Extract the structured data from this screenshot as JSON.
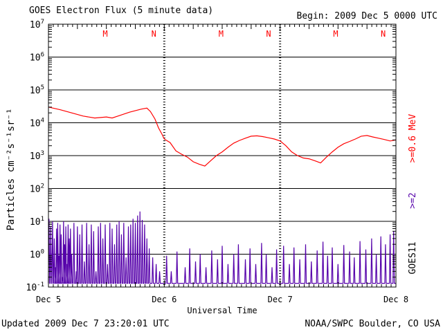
{
  "header": {
    "title": "GOES Electron Flux (5 minute data)",
    "begin": "Begin: 2009 Dec 5 0000 UTC"
  },
  "footer": {
    "updated": "Updated 2009 Dec  7 23:20:01 UTC",
    "source": "NOAA/SWPC Boulder, CO USA"
  },
  "colors": {
    "high_energy": "#ff0000",
    "low_energy": "#5500aa",
    "axis": "#000000",
    "satellite_label": "#000000",
    "mn_markers": "#ff0000"
  },
  "chart_data": {
    "type": "line",
    "title": "GOES Electron Flux (5 minute data)",
    "xlabel": "Universal Time",
    "ylabel": "Particles cm⁻²s⁻¹sr⁻¹",
    "yscale": "log",
    "ylim": [
      0.1,
      10000000
    ],
    "xlim": [
      0,
      3
    ],
    "x_unit": "days since 2009 Dec 5 0000 UTC",
    "x_ticks": [
      {
        "x": 0,
        "label": "Dec 5"
      },
      {
        "x": 1,
        "label": "Dec 6"
      },
      {
        "x": 2,
        "label": "Dec 7"
      },
      {
        "x": 3,
        "label": "Dec 8"
      }
    ],
    "y_ticks": [
      {
        "exp": -1,
        "base": "10",
        "sup": "-1"
      },
      {
        "exp": 0,
        "base": "10",
        "sup": "0"
      },
      {
        "exp": 1,
        "base": "10",
        "sup": "1"
      },
      {
        "exp": 2,
        "base": "10",
        "sup": "2"
      },
      {
        "exp": 3,
        "base": "10",
        "sup": "3"
      },
      {
        "exp": 4,
        "base": "10",
        "sup": "4"
      },
      {
        "exp": 5,
        "base": "10",
        "sup": "5"
      },
      {
        "exp": 6,
        "base": "10",
        "sup": "6"
      },
      {
        "exp": 7,
        "base": "10",
        "sup": "7"
      }
    ],
    "threshold": 1000,
    "day_boundaries": [
      1,
      2
    ],
    "mn_markers": [
      {
        "x": 0.49,
        "label": "M"
      },
      {
        "x": 0.91,
        "label": "N"
      },
      {
        "x": 1.49,
        "label": "M"
      },
      {
        "x": 1.9,
        "label": "N"
      },
      {
        "x": 2.48,
        "label": "M"
      },
      {
        "x": 2.89,
        "label": "N"
      }
    ],
    "right_labels": {
      "high": "Mev",
      "high_full": ">=0.6 MeV",
      "low": ">=2",
      "satellite": "GOES11"
    },
    "series": [
      {
        "name": ">=0.6 MeV",
        "color": "#ff0000",
        "points": [
          [
            0.0,
            30000
          ],
          [
            0.1,
            25000
          ],
          [
            0.2,
            20000
          ],
          [
            0.3,
            16000
          ],
          [
            0.4,
            14000
          ],
          [
            0.5,
            15000
          ],
          [
            0.55,
            14000
          ],
          [
            0.6,
            16000
          ],
          [
            0.7,
            21000
          ],
          [
            0.8,
            26000
          ],
          [
            0.85,
            28000
          ],
          [
            0.88,
            22000
          ],
          [
            0.92,
            13000
          ],
          [
            0.95,
            7000
          ],
          [
            0.98,
            4500
          ],
          [
            1.0,
            3200
          ],
          [
            1.05,
            2500
          ],
          [
            1.1,
            1400
          ],
          [
            1.15,
            1100
          ],
          [
            1.2,
            900
          ],
          [
            1.25,
            650
          ],
          [
            1.3,
            550
          ],
          [
            1.35,
            480
          ],
          [
            1.4,
            700
          ],
          [
            1.45,
            1000
          ],
          [
            1.5,
            1300
          ],
          [
            1.55,
            1800
          ],
          [
            1.6,
            2400
          ],
          [
            1.65,
            2900
          ],
          [
            1.7,
            3400
          ],
          [
            1.75,
            3900
          ],
          [
            1.8,
            4000
          ],
          [
            1.85,
            3800
          ],
          [
            1.9,
            3500
          ],
          [
            1.95,
            3200
          ],
          [
            2.0,
            2800
          ],
          [
            2.05,
            2000
          ],
          [
            2.1,
            1300
          ],
          [
            2.15,
            1000
          ],
          [
            2.2,
            850
          ],
          [
            2.25,
            800
          ],
          [
            2.3,
            700
          ],
          [
            2.35,
            600
          ],
          [
            2.4,
            900
          ],
          [
            2.45,
            1300
          ],
          [
            2.5,
            1800
          ],
          [
            2.55,
            2300
          ],
          [
            2.6,
            2700
          ],
          [
            2.65,
            3200
          ],
          [
            2.7,
            3900
          ],
          [
            2.75,
            4100
          ],
          [
            2.8,
            3700
          ],
          [
            2.85,
            3400
          ],
          [
            2.9,
            3100
          ],
          [
            2.95,
            2800
          ],
          [
            3.0,
            3000
          ]
        ]
      },
      {
        "name": ">=2 MeV",
        "color": "#5500aa",
        "baseline": 0.13,
        "spikes": [
          [
            0.005,
            12
          ],
          [
            0.02,
            7
          ],
          [
            0.035,
            10
          ],
          [
            0.05,
            3
          ],
          [
            0.06,
            0.4
          ],
          [
            0.07,
            6
          ],
          [
            0.08,
            9
          ],
          [
            0.09,
            0.9
          ],
          [
            0.1,
            8
          ],
          [
            0.11,
            4
          ],
          [
            0.12,
            0.2
          ],
          [
            0.13,
            10
          ],
          [
            0.14,
            2
          ],
          [
            0.15,
            7
          ],
          [
            0.16,
            0.5
          ],
          [
            0.17,
            8
          ],
          [
            0.18,
            3
          ],
          [
            0.19,
            6
          ],
          [
            0.2,
            1
          ],
          [
            0.22,
            9
          ],
          [
            0.24,
            0.3
          ],
          [
            0.25,
            7
          ],
          [
            0.27,
            4
          ],
          [
            0.29,
            8
          ],
          [
            0.31,
            0.6
          ],
          [
            0.33,
            9
          ],
          [
            0.35,
            2
          ],
          [
            0.37,
            8
          ],
          [
            0.39,
            5
          ],
          [
            0.41,
            0.3
          ],
          [
            0.43,
            7
          ],
          [
            0.45,
            9
          ],
          [
            0.47,
            3
          ],
          [
            0.49,
            8
          ],
          [
            0.51,
            0.5
          ],
          [
            0.53,
            9
          ],
          [
            0.55,
            6
          ],
          [
            0.57,
            2
          ],
          [
            0.59,
            8
          ],
          [
            0.61,
            10
          ],
          [
            0.63,
            4
          ],
          [
            0.65,
            9
          ],
          [
            0.67,
            0.8
          ],
          [
            0.69,
            7
          ],
          [
            0.71,
            8
          ],
          [
            0.73,
            12
          ],
          [
            0.75,
            9
          ],
          [
            0.77,
            15
          ],
          [
            0.79,
            20
          ],
          [
            0.81,
            11
          ],
          [
            0.83,
            8
          ],
          [
            0.85,
            3
          ],
          [
            0.87,
            1.5
          ],
          [
            0.9,
            0.8
          ],
          [
            0.93,
            0.5
          ],
          [
            0.96,
            0.3
          ],
          [
            1.02,
            0.9
          ],
          [
            1.06,
            0.3
          ],
          [
            1.11,
            1.2
          ],
          [
            1.18,
            0.4
          ],
          [
            1.22,
            1.5
          ],
          [
            1.27,
            0.6
          ],
          [
            1.31,
            1.0
          ],
          [
            1.36,
            0.4
          ],
          [
            1.41,
            1.3
          ],
          [
            1.46,
            0.7
          ],
          [
            1.5,
            1.8
          ],
          [
            1.55,
            0.5
          ],
          [
            1.6,
            1.0
          ],
          [
            1.64,
            2.0
          ],
          [
            1.7,
            0.7
          ],
          [
            1.74,
            1.5
          ],
          [
            1.79,
            0.5
          ],
          [
            1.84,
            2.2
          ],
          [
            1.88,
            1.0
          ],
          [
            1.93,
            0.4
          ],
          [
            1.97,
            1.4
          ],
          [
            2.03,
            1.8
          ],
          [
            2.08,
            0.5
          ],
          [
            2.12,
            1.6
          ],
          [
            2.17,
            0.7
          ],
          [
            2.22,
            2.0
          ],
          [
            2.27,
            0.6
          ],
          [
            2.32,
            1.3
          ],
          [
            2.37,
            2.4
          ],
          [
            2.41,
            0.9
          ],
          [
            2.45,
            1.6
          ],
          [
            2.5,
            0.5
          ],
          [
            2.55,
            1.9
          ],
          [
            2.6,
            1.2
          ],
          [
            2.64,
            0.8
          ],
          [
            2.69,
            2.5
          ],
          [
            2.74,
            1.4
          ],
          [
            2.79,
            3.0
          ],
          [
            2.83,
            1.0
          ],
          [
            2.87,
            3.5
          ],
          [
            2.91,
            2.0
          ],
          [
            2.95,
            4.0
          ],
          [
            2.98,
            5.0
          ]
        ]
      }
    ]
  }
}
